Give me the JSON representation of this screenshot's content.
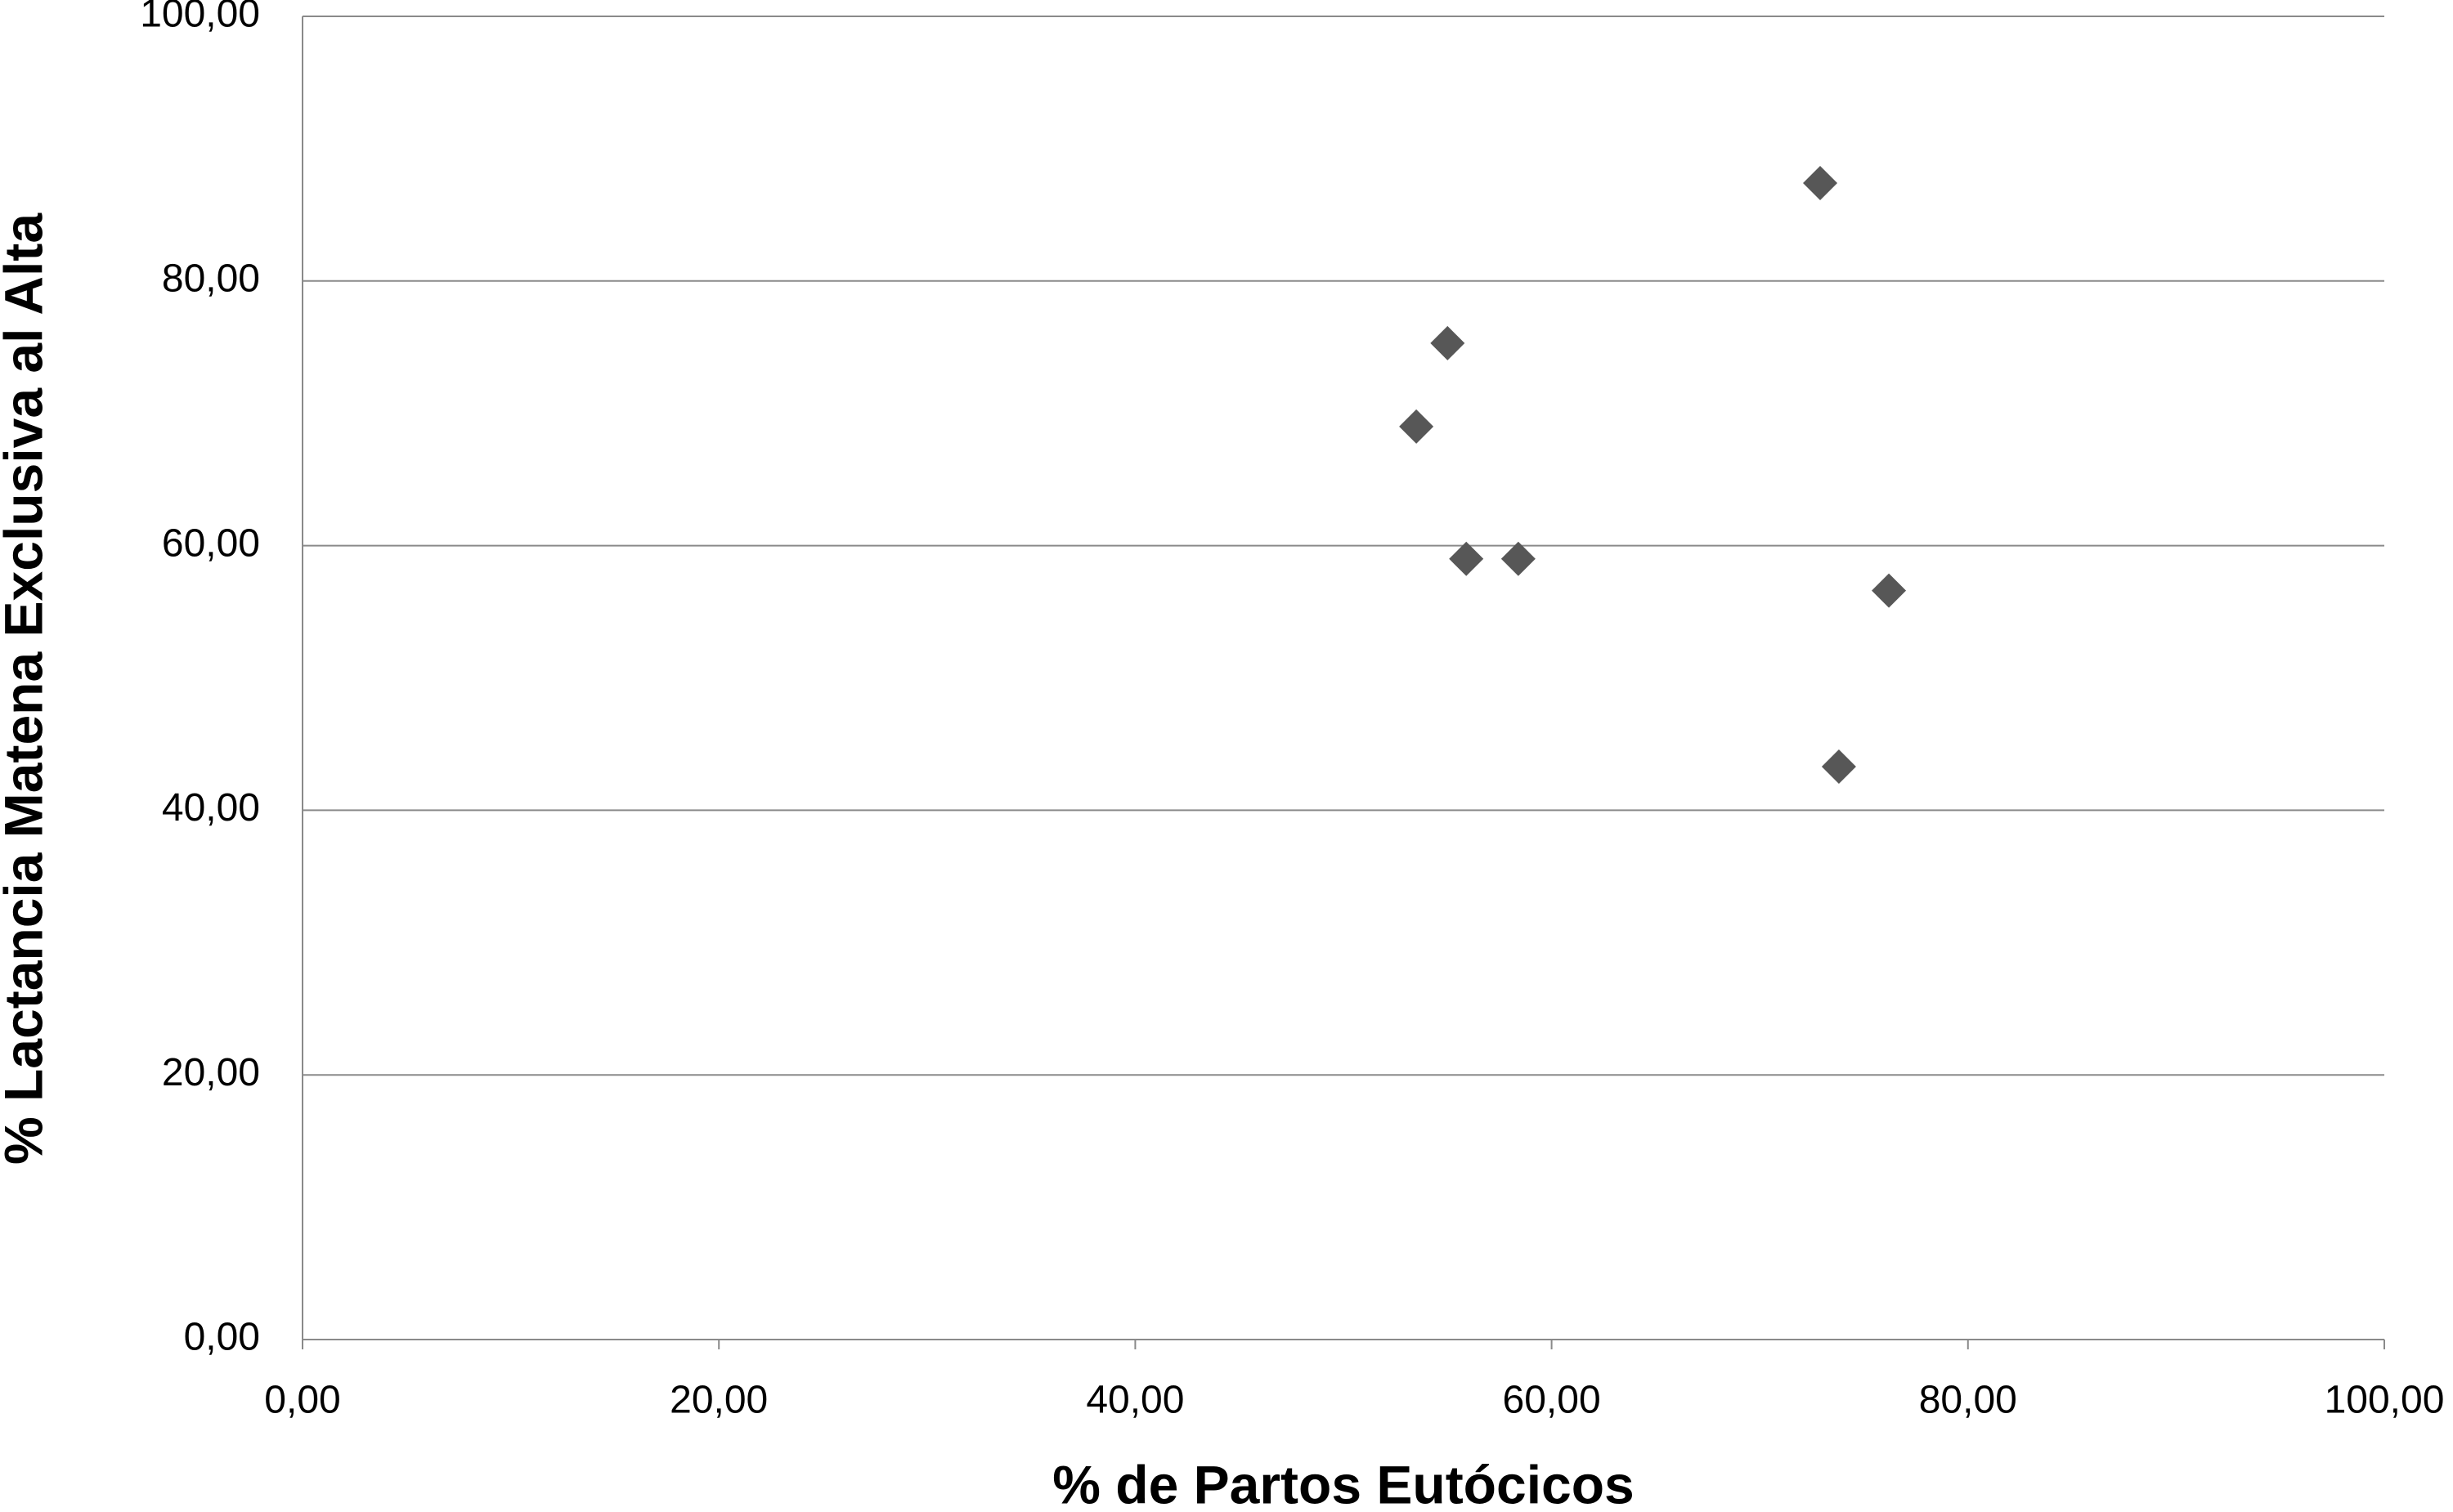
{
  "chart_data": {
    "type": "scatter",
    "x_label": "% de Partos Eutócicos",
    "y_label": "% Lactancia Matena Exclusiva al Alta",
    "x": [
      72.9,
      55.0,
      53.5,
      55.9,
      58.4,
      76.2,
      73.8
    ],
    "series": [
      {
        "color": "#575757",
        "values": [
          87.4,
          75.3,
          69.0,
          59.0,
          59.0,
          56.6,
          43.3
        ]
      }
    ],
    "xlim": [
      0,
      100
    ],
    "xticks": [
      {
        "value": 0,
        "label": "0,00"
      },
      {
        "value": 20,
        "label": "20,00"
      },
      {
        "value": 40,
        "label": "40,00"
      },
      {
        "value": 60,
        "label": "60,00"
      },
      {
        "value": 80,
        "label": "80,00"
      },
      {
        "value": 100,
        "label": "100,00"
      }
    ],
    "ylim": [
      0,
      100
    ],
    "yticks": [
      {
        "value": 0,
        "label": "0,00"
      },
      {
        "value": 20,
        "label": "20,00"
      },
      {
        "value": 40,
        "label": "40,00"
      },
      {
        "value": 60,
        "label": "60,00"
      },
      {
        "value": 80,
        "label": "80,00"
      },
      {
        "value": 100,
        "label": "100,00"
      }
    ],
    "grid": true
  }
}
